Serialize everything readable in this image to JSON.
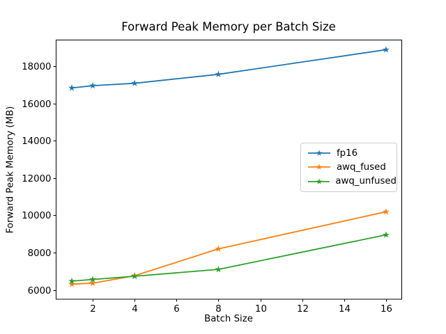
{
  "chart_data": {
    "type": "line",
    "title": "Forward Peak Memory per Batch Size",
    "xlabel": "Batch Size",
    "ylabel": "Forward Peak Memory (MB)",
    "x": [
      1,
      2,
      4,
      8,
      16
    ],
    "series": [
      {
        "name": "fp16",
        "color": "#1f77b4",
        "marker": "star",
        "values": [
          16830,
          16950,
          17080,
          17560,
          18880
        ]
      },
      {
        "name": "awq_fused",
        "color": "#ff7f0e",
        "marker": "star",
        "values": [
          6310,
          6360,
          6760,
          8200,
          10190
        ]
      },
      {
        "name": "awq_unfused",
        "color": "#2ca02c",
        "marker": "star",
        "values": [
          6470,
          6560,
          6730,
          7100,
          8950
        ]
      }
    ],
    "xticks": [
      2,
      4,
      6,
      8,
      10,
      12,
      14,
      16
    ],
    "yticks": [
      6000,
      8000,
      10000,
      12000,
      14000,
      16000,
      18000
    ],
    "xlim": [
      0.25,
      16.75
    ],
    "ylim": [
      5500,
      19400
    ],
    "grid": false,
    "legend": {
      "position": "center right",
      "entries": [
        "fp16",
        "awq_fused",
        "awq_unfused"
      ]
    },
    "colors": {
      "spine": "#000000",
      "background": "#ffffff",
      "text": "#000000"
    }
  }
}
